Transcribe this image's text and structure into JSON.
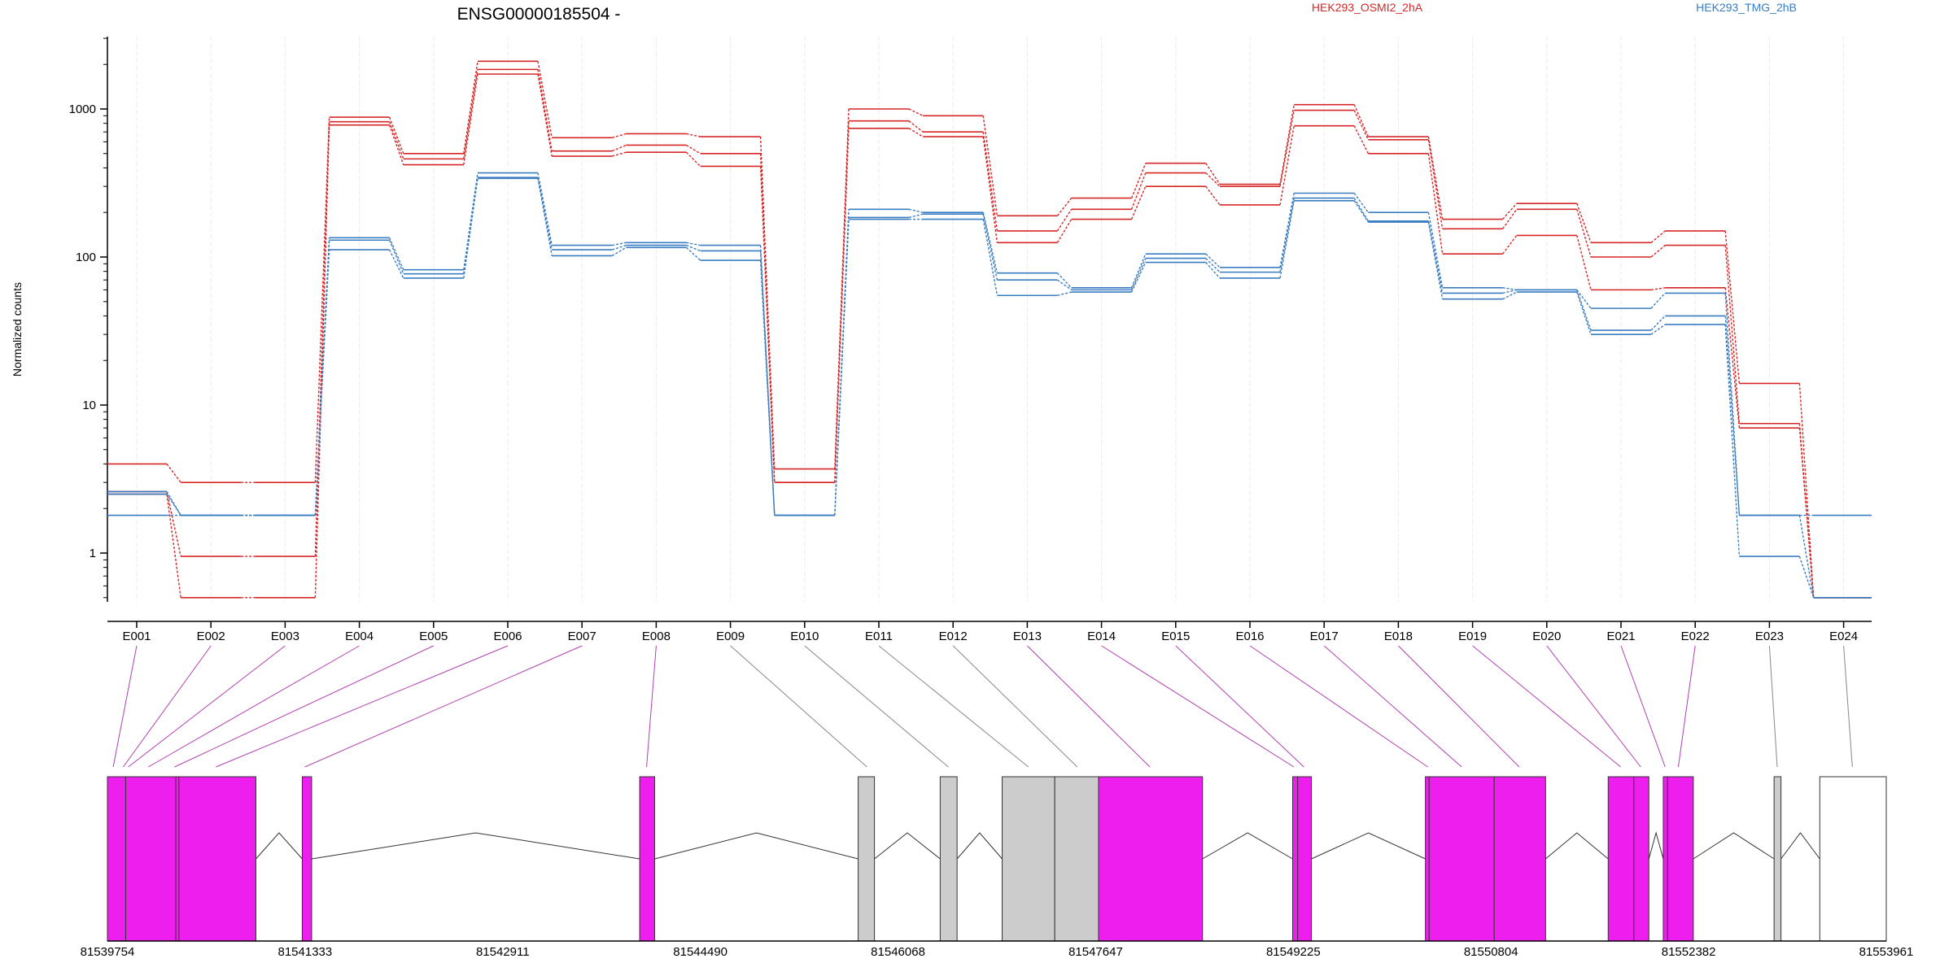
{
  "chart_data": {
    "type": "line",
    "title": "ENSG00000185504 -",
    "ylabel": "Normalized counts",
    "xlabel": "",
    "yscale": "log",
    "ylim": [
      0.5,
      3000
    ],
    "yticks": [
      1,
      10,
      100,
      1000
    ],
    "legend": {
      "placement": "top"
    },
    "categories": [
      "E001",
      "E002",
      "E003",
      "E004",
      "E005",
      "E006",
      "E007",
      "E008",
      "E009",
      "E010",
      "E011",
      "E012",
      "E013",
      "E014",
      "E015",
      "E016",
      "E017",
      "E018",
      "E019",
      "E020",
      "E021",
      "E022",
      "E023",
      "E024"
    ],
    "series": [
      {
        "name": "HEK293_OSMI2_2hA",
        "color": "#d62728",
        "values": [
          4,
          3,
          3,
          880,
          500,
          2100,
          640,
          680,
          650,
          3.7,
          1000,
          900,
          190,
          250,
          430,
          310,
          1070,
          650,
          180,
          230,
          125,
          150,
          14,
          0.5
        ]
      },
      {
        "name": "",
        "color": "#d62728",
        "values": [
          2.6,
          0.95,
          0.95,
          820,
          460,
          1850,
          520,
          570,
          500,
          3,
          830,
          700,
          150,
          210,
          370,
          300,
          980,
          620,
          155,
          210,
          100,
          120,
          7.5,
          0.5
        ]
      },
      {
        "name": "",
        "color": "#d62728",
        "values": [
          2.5,
          0.5,
          0.5,
          780,
          420,
          1720,
          480,
          510,
          410,
          3,
          740,
          650,
          125,
          180,
          300,
          225,
          770,
          500,
          105,
          140,
          60,
          62,
          7,
          0.5
        ]
      },
      {
        "name": "HEK293_TMG_2hB",
        "color": "#3a7dc0",
        "values": [
          2.6,
          1.8,
          1.8,
          135,
          82,
          370,
          120,
          125,
          120,
          1.8,
          210,
          200,
          78,
          62,
          105,
          85,
          270,
          200,
          62,
          60,
          45,
          57,
          1.8,
          1.8
        ]
      },
      {
        "name": "",
        "color": "#3a7dc0",
        "values": [
          2.5,
          1.8,
          1.8,
          130,
          77,
          345,
          112,
          120,
          110,
          1.8,
          185,
          195,
          70,
          60,
          98,
          79,
          250,
          175,
          57,
          60,
          32,
          40,
          1.8,
          0.5
        ]
      },
      {
        "name": "",
        "color": "#3a7dc0",
        "values": [
          1.8,
          1.8,
          1.8,
          112,
          72,
          340,
          102,
          116,
          95,
          1.8,
          180,
          180,
          55,
          58,
          92,
          72,
          240,
          172,
          52,
          58,
          30,
          35,
          0.95,
          0.5
        ]
      }
    ],
    "gene_model": {
      "coordinate_ticks": [
        "81539754",
        "81541333",
        "81542911",
        "81544490",
        "81546068",
        "81547647",
        "81549225",
        "81550804",
        "81552382",
        "81553961"
      ],
      "coord_start": 81539754,
      "coord_end": 81553961,
      "exons": [
        {
          "id": "E001",
          "start": 81539754,
          "end": 81539900,
          "color": "#ee1eee"
        },
        {
          "id": "E002",
          "start": 81539900,
          "end": 81540300,
          "color": "#ee1eee"
        },
        {
          "id": "E003",
          "start": 81540300,
          "end": 81540325,
          "color": "#ee1eee"
        },
        {
          "id": "E004",
          "start": 81540325,
          "end": 81540940,
          "color": "#ee1eee"
        },
        {
          "id": "E007",
          "start": 81541310,
          "end": 81541385,
          "color": "#ee1eee"
        },
        {
          "id": "E008",
          "start": 81544005,
          "end": 81544125,
          "color": "#ee1eee"
        },
        {
          "id": "E009",
          "start": 81545750,
          "end": 81545880,
          "color": "#cccccc"
        },
        {
          "id": "E010",
          "start": 81546405,
          "end": 81546540,
          "color": "#cccccc"
        },
        {
          "id": "E011",
          "start": 81546900,
          "end": 81547320,
          "color": "#cccccc"
        },
        {
          "id": "E012",
          "start": 81547320,
          "end": 81547670,
          "color": "#cccccc"
        },
        {
          "id": "E013",
          "start": 81547670,
          "end": 81548500,
          "color": "#ee1eee"
        },
        {
          "id": "E014",
          "start": 81549220,
          "end": 81549260,
          "color": "#ee1eee"
        },
        {
          "id": "E015",
          "start": 81549260,
          "end": 81549370,
          "color": "#ee1eee"
        },
        {
          "id": "E017",
          "start": 81550280,
          "end": 81550310,
          "color": "#ee1eee"
        },
        {
          "id": "E018",
          "start": 81550310,
          "end": 81550830,
          "color": "#ee1eee"
        },
        {
          "id": "E019",
          "start": 81550830,
          "end": 81551240,
          "color": "#ee1eee"
        },
        {
          "id": "E020",
          "start": 81551740,
          "end": 81551945,
          "color": "#ee1eee"
        },
        {
          "id": "E021",
          "start": 81551945,
          "end": 81552065,
          "color": "#ee1eee"
        },
        {
          "id": "E022",
          "start": 81552180,
          "end": 81552215,
          "color": "#ee1eee"
        },
        {
          "id": "E022b",
          "start": 81552215,
          "end": 81552420,
          "color": "#ee1eee"
        },
        {
          "id": "E023",
          "start": 81553065,
          "end": 81553120,
          "color": "#cccccc"
        },
        {
          "id": "E024",
          "start": 81553430,
          "end": 81553961,
          "color": "#ffffff"
        }
      ],
      "connectors": [
        {
          "exon": "E001",
          "pos": 81539800,
          "color": "#b040b0"
        },
        {
          "exon": "E002",
          "pos": 81539880,
          "color": "#b040b0"
        },
        {
          "exon": "E003",
          "pos": 81539920,
          "color": "#b040b0"
        },
        {
          "exon": "E004",
          "pos": 81540080,
          "color": "#b040b0"
        },
        {
          "exon": "E005",
          "pos": 81540290,
          "color": "#b040b0"
        },
        {
          "exon": "E006",
          "pos": 81540620,
          "color": "#b040b0"
        },
        {
          "exon": "E007",
          "pos": 81541330,
          "color": "#b040b0"
        },
        {
          "exon": "E008",
          "pos": 81544060,
          "color": "#b040b0"
        },
        {
          "exon": "E009",
          "pos": 81545820,
          "color": "#888888"
        },
        {
          "exon": "E010",
          "pos": 81546470,
          "color": "#888888"
        },
        {
          "exon": "E011",
          "pos": 81547110,
          "color": "#888888"
        },
        {
          "exon": "E012",
          "pos": 81547500,
          "color": "#888888"
        },
        {
          "exon": "E013",
          "pos": 81548080,
          "color": "#b040b0"
        },
        {
          "exon": "E014",
          "pos": 81549230,
          "color": "#b040b0"
        },
        {
          "exon": "E015",
          "pos": 81549310,
          "color": "#b040b0"
        },
        {
          "exon": "E016",
          "pos": 81550300,
          "color": "#b040b0"
        },
        {
          "exon": "E017",
          "pos": 81550570,
          "color": "#b040b0"
        },
        {
          "exon": "E018",
          "pos": 81551030,
          "color": "#b040b0"
        },
        {
          "exon": "E019",
          "pos": 81551840,
          "color": "#b040b0"
        },
        {
          "exon": "E020",
          "pos": 81552000,
          "color": "#b040b0"
        },
        {
          "exon": "E021",
          "pos": 81552195,
          "color": "#b040b0"
        },
        {
          "exon": "E022",
          "pos": 81552300,
          "color": "#b040b0"
        },
        {
          "exon": "E023",
          "pos": 81553090,
          "color": "#888888"
        },
        {
          "exon": "E024",
          "pos": 81553690,
          "color": "#888888"
        }
      ],
      "introns": [
        [
          81540940,
          81541310
        ],
        [
          81541385,
          81544005
        ],
        [
          81544125,
          81545750
        ],
        [
          81545880,
          81546405
        ],
        [
          81546540,
          81546900
        ],
        [
          81548500,
          81549220
        ],
        [
          81549370,
          81550280
        ],
        [
          81551240,
          81551740
        ],
        [
          81552065,
          81552180
        ],
        [
          81552420,
          81553065
        ],
        [
          81553120,
          81553430
        ]
      ]
    }
  }
}
